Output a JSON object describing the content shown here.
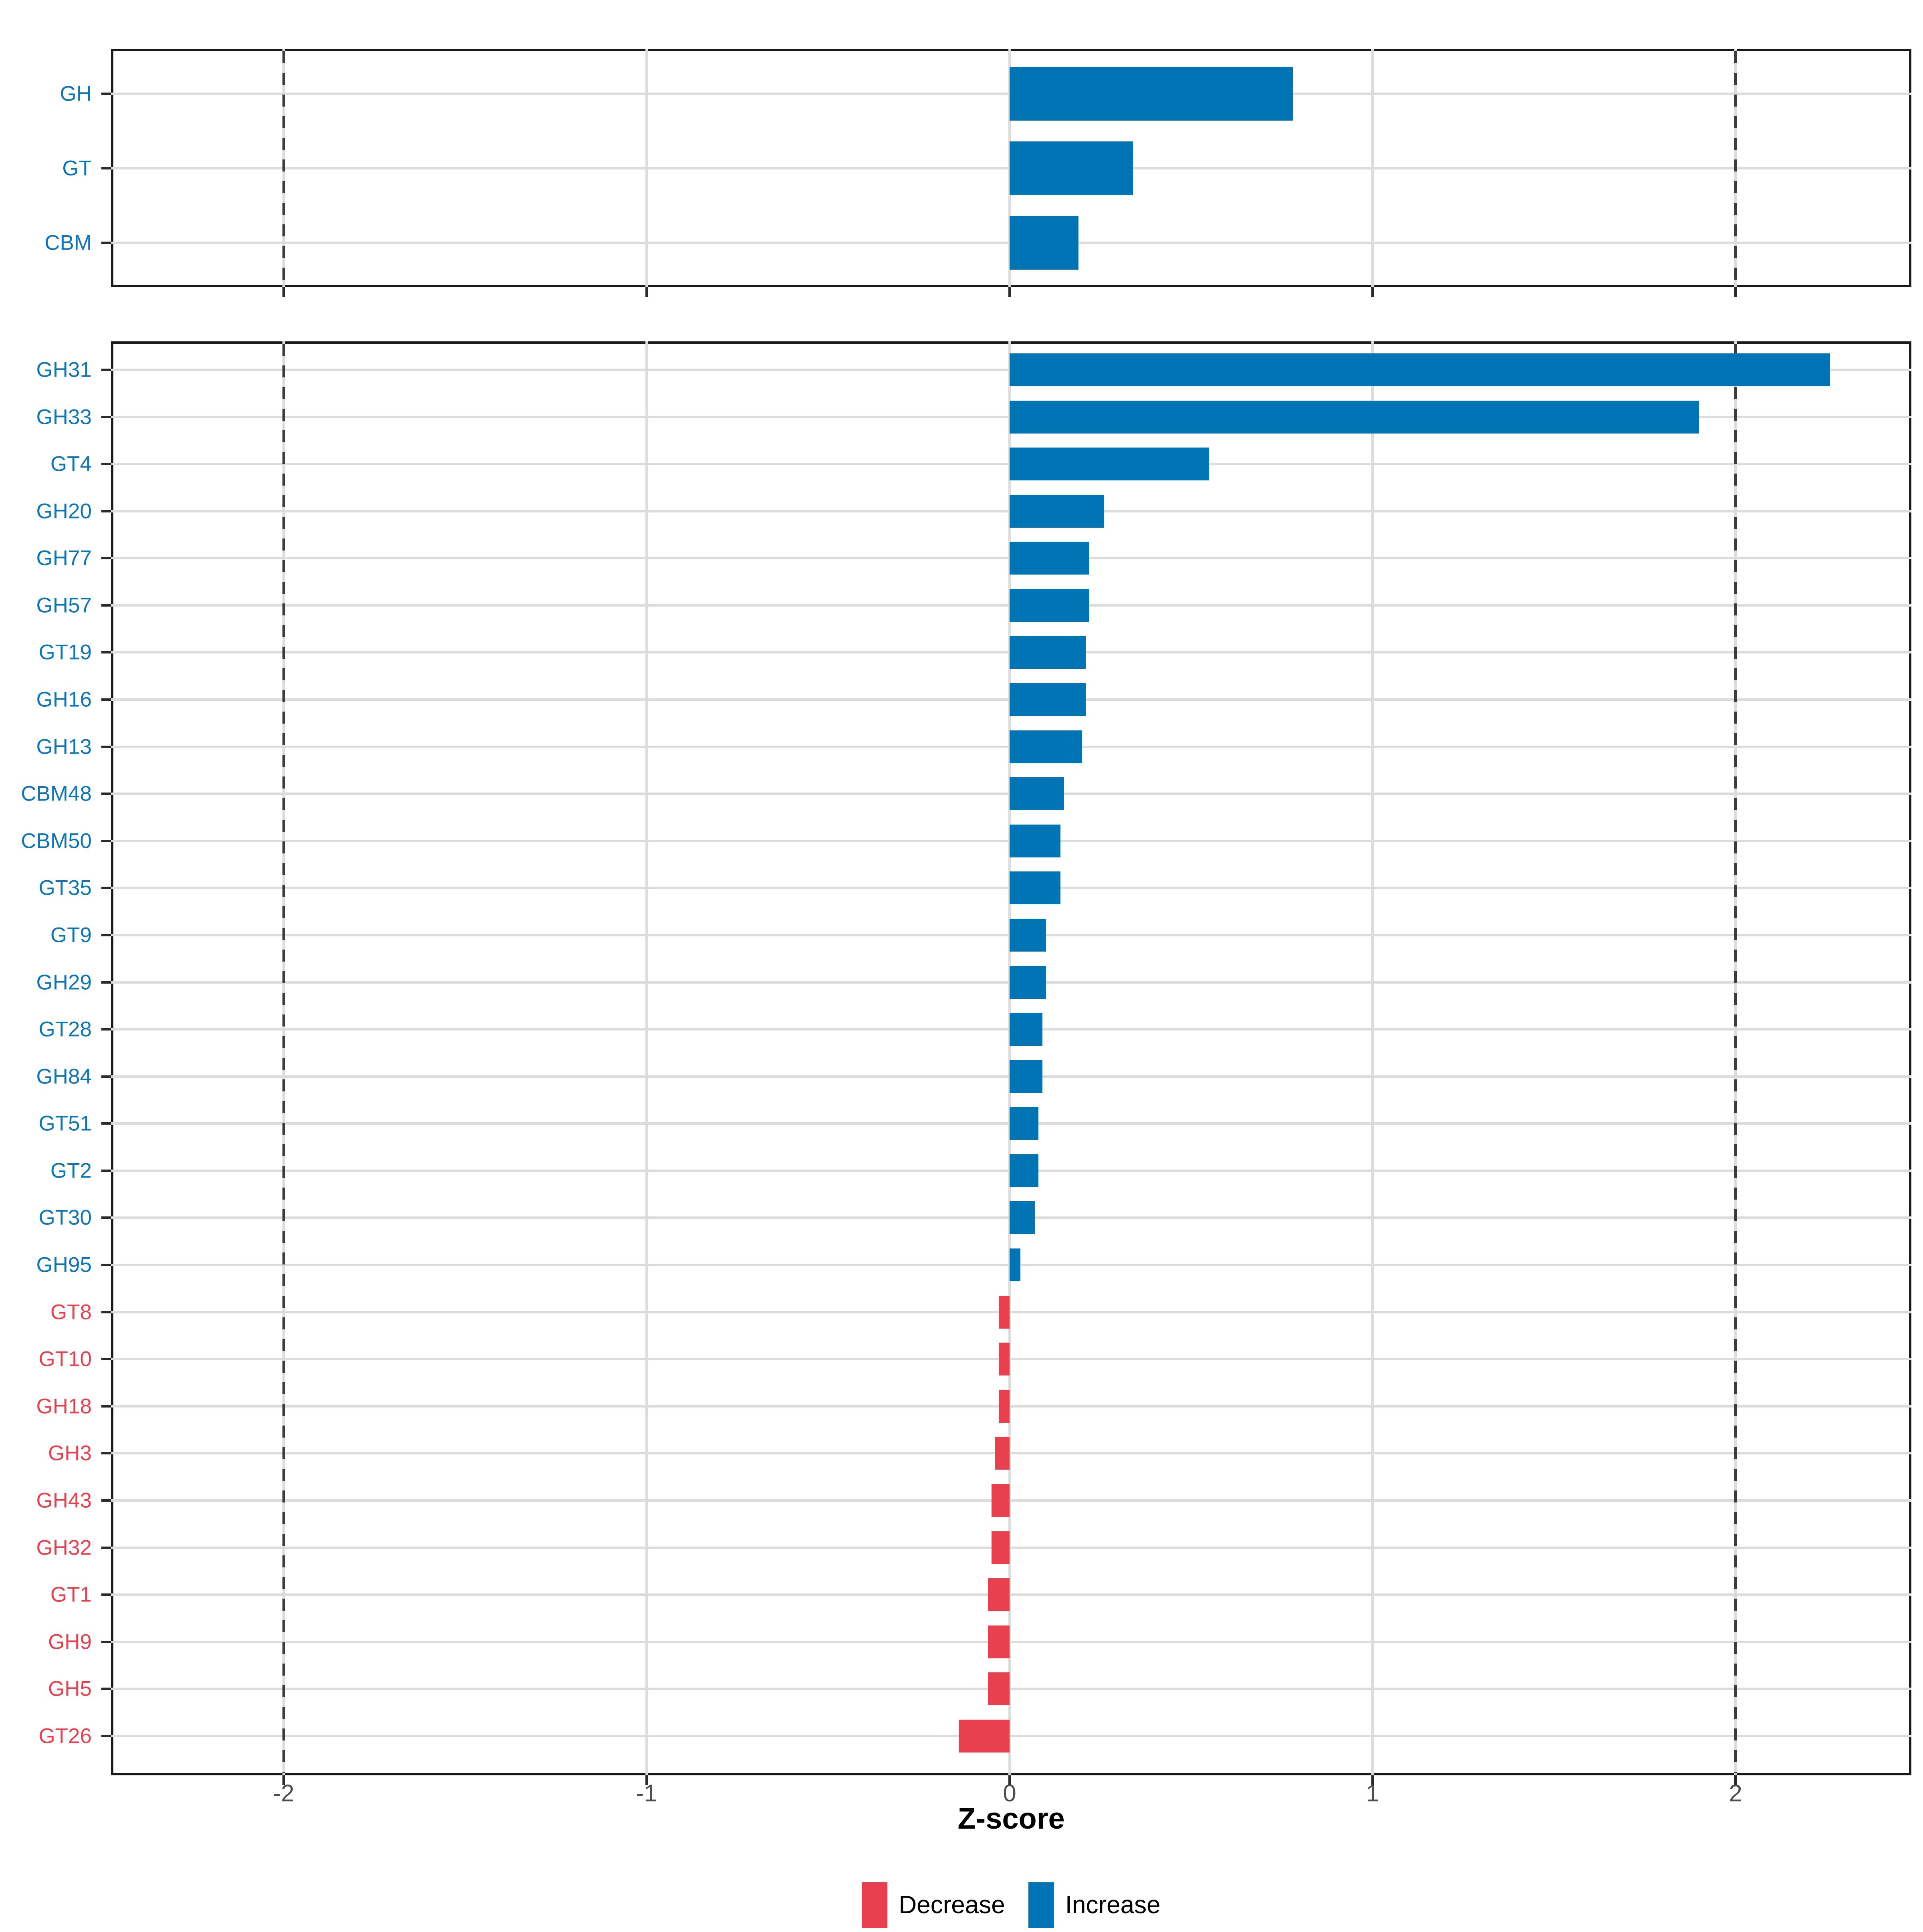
{
  "axis": {
    "title": "Z-score",
    "tick_values": [
      -2,
      -1,
      0,
      1,
      2
    ],
    "tick_labels": [
      "-2",
      "-1",
      "0",
      "1",
      "2"
    ],
    "xlim": [
      -2.47,
      2.49
    ],
    "dashed_reference_lines": [
      -2,
      2
    ],
    "grid": "on"
  },
  "legend": {
    "position": "bottom-center",
    "items": [
      {
        "label": "Decrease",
        "color": "#e8404e"
      },
      {
        "label": "Increase",
        "color": "#0074b4"
      }
    ]
  },
  "colors": {
    "increase_bar": "#0074b4",
    "decrease_bar": "#e8404e",
    "increase_label": "#0e76b6",
    "decrease_label": "#e8404e",
    "gridline": "#dcdcdc",
    "dashed_line": "#3c3c3c",
    "axis_text": "#4d4d4d",
    "panel_border": "#1a1a1a",
    "background": "#ffffff"
  },
  "chart_data": [
    {
      "panel": "top",
      "type": "bar",
      "orientation": "horizontal",
      "title": "",
      "xlabel": "Z-score",
      "ylabel": "",
      "categories": [
        "GH",
        "GT",
        "CBM"
      ],
      "values": [
        0.78,
        0.34,
        0.19
      ],
      "groups": [
        "Increase",
        "Increase",
        "Increase"
      ]
    },
    {
      "panel": "bottom",
      "type": "bar",
      "orientation": "horizontal",
      "title": "",
      "xlabel": "Z-score",
      "ylabel": "",
      "categories": [
        "GH31",
        "GH33",
        "GT4",
        "GH20",
        "GH77",
        "GH57",
        "GT19",
        "GH16",
        "GH13",
        "CBM48",
        "CBM50",
        "GT35",
        "GT9",
        "GH29",
        "GT28",
        "GH84",
        "GT51",
        "GT2",
        "GT30",
        "GH95",
        "GT8",
        "GT10",
        "GH18",
        "GH3",
        "GH43",
        "GH32",
        "GT1",
        "GH9",
        "GH5",
        "GT26"
      ],
      "values": [
        2.26,
        1.9,
        0.55,
        0.26,
        0.22,
        0.22,
        0.21,
        0.21,
        0.2,
        0.15,
        0.14,
        0.14,
        0.1,
        0.1,
        0.09,
        0.09,
        0.08,
        0.08,
        0.07,
        0.03,
        -0.03,
        -0.03,
        -0.03,
        -0.04,
        -0.05,
        -0.05,
        -0.06,
        -0.06,
        -0.06,
        -0.14
      ],
      "groups": [
        "Increase",
        "Increase",
        "Increase",
        "Increase",
        "Increase",
        "Increase",
        "Increase",
        "Increase",
        "Increase",
        "Increase",
        "Increase",
        "Increase",
        "Increase",
        "Increase",
        "Increase",
        "Increase",
        "Increase",
        "Increase",
        "Increase",
        "Increase",
        "Decrease",
        "Decrease",
        "Decrease",
        "Decrease",
        "Decrease",
        "Decrease",
        "Decrease",
        "Decrease",
        "Decrease",
        "Decrease"
      ]
    }
  ]
}
